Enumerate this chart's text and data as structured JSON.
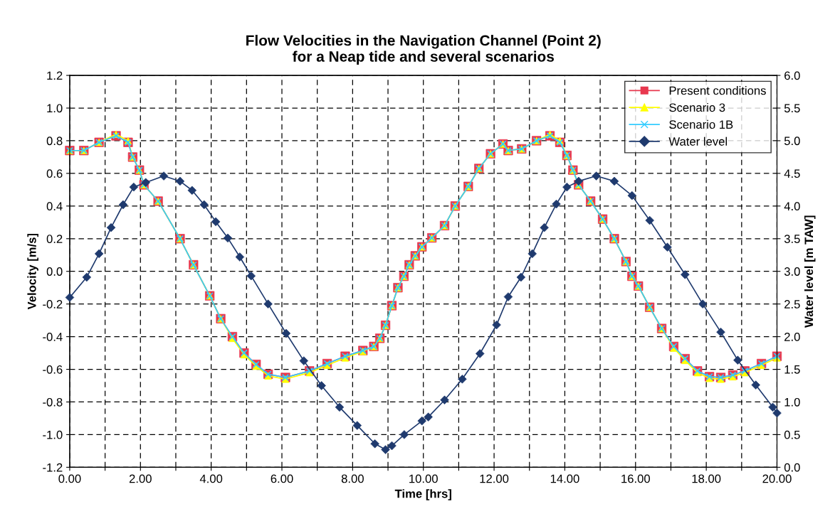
{
  "chart_data": {
    "type": "line",
    "title": "Flow Velocities in the Navigation Channel (Point 2)\nfor a Neap tide and several scenarios",
    "xlabel": "Time [hrs]",
    "ylabel": "Velocity [m/s]",
    "y2label": "Water level [m TAW]",
    "xlim": [
      0,
      20
    ],
    "ylim": [
      -1.2,
      1.2
    ],
    "y2lim": [
      0,
      6
    ],
    "xticks": [
      {
        "value": 0,
        "label": "0.00"
      },
      {
        "value": 1,
        "label": null
      },
      {
        "value": 2,
        "label": "2.00"
      },
      {
        "value": 3,
        "label": null
      },
      {
        "value": 4,
        "label": "4.00"
      },
      {
        "value": 5,
        "label": null
      },
      {
        "value": 6,
        "label": "6.00"
      },
      {
        "value": 7,
        "label": null
      },
      {
        "value": 8,
        "label": "8.00"
      },
      {
        "value": 9,
        "label": null
      },
      {
        "value": 10,
        "label": "10.00"
      },
      {
        "value": 11,
        "label": null
      },
      {
        "value": 12,
        "label": "12.00"
      },
      {
        "value": 13,
        "label": null
      },
      {
        "value": 14,
        "label": "14.00"
      },
      {
        "value": 15,
        "label": null
      },
      {
        "value": 16,
        "label": "16.00"
      },
      {
        "value": 17,
        "label": null
      },
      {
        "value": 18,
        "label": "18.00"
      },
      {
        "value": 19,
        "label": null
      },
      {
        "value": 20,
        "label": "20.00"
      }
    ],
    "yticks": [
      {
        "value": -1.2,
        "label": "-1.2"
      },
      {
        "value": -1.0,
        "label": "-1.0"
      },
      {
        "value": -0.8,
        "label": "-0.8"
      },
      {
        "value": -0.6,
        "label": "-0.6"
      },
      {
        "value": -0.4,
        "label": "-0.4"
      },
      {
        "value": -0.2,
        "label": "-0.2"
      },
      {
        "value": 0,
        "label": "0.0"
      },
      {
        "value": 0.2,
        "label": "0.2"
      },
      {
        "value": 0.4,
        "label": "0.4"
      },
      {
        "value": 0.6,
        "label": "0.6"
      },
      {
        "value": 0.8,
        "label": "0.8"
      },
      {
        "value": 1.0,
        "label": "1.0"
      },
      {
        "value": 1.2,
        "label": "1.2"
      }
    ],
    "y2ticks": [
      {
        "value": 0,
        "label": "0.0"
      },
      {
        "value": 0.5,
        "label": "0.5"
      },
      {
        "value": 1,
        "label": "1.0"
      },
      {
        "value": 1.5,
        "label": "1.5"
      },
      {
        "value": 2,
        "label": "2.0"
      },
      {
        "value": 2.5,
        "label": "2.5"
      },
      {
        "value": 3,
        "label": "3.0"
      },
      {
        "value": 3.5,
        "label": "3.5"
      },
      {
        "value": 4,
        "label": "4.0"
      },
      {
        "value": 4.5,
        "label": "4.5"
      },
      {
        "value": 5,
        "label": "5.0"
      },
      {
        "value": 5.5,
        "label": "5.5"
      },
      {
        "value": 6,
        "label": "6.0"
      }
    ],
    "grid": true,
    "legend": "top right",
    "series": [
      {
        "name": "Present conditions",
        "color": "#e8384f",
        "marker": "square",
        "x": [
          0,
          0.4,
          0.83,
          1.31,
          1.65,
          1.78,
          1.97,
          2.1,
          2.5,
          3.12,
          3.5,
          3.96,
          4.27,
          4.6,
          4.93,
          5.27,
          5.61,
          6.1,
          6.78,
          7.28,
          7.79,
          8.29,
          8.6,
          8.77,
          8.93,
          9.11,
          9.28,
          9.45,
          9.6,
          9.77,
          9.96,
          10.24,
          10.6,
          10.9,
          11.27,
          11.57,
          11.9,
          12.25,
          12.4,
          12.78,
          13.2,
          13.58,
          13.86,
          14.06,
          14.23,
          14.39,
          14.73,
          15.07,
          15.4,
          15.73,
          15.9,
          16.08,
          16.4,
          16.74,
          17.08,
          17.4,
          17.75,
          18.09,
          18.41,
          18.75,
          19.09,
          19.56,
          20
        ],
        "values": [
          0.74,
          0.74,
          0.79,
          0.83,
          0.79,
          0.7,
          0.62,
          0.53,
          0.43,
          0.2,
          0.04,
          -0.15,
          -0.29,
          -0.4,
          -0.5,
          -0.57,
          -0.63,
          -0.65,
          -0.61,
          -0.565,
          -0.52,
          -0.485,
          -0.46,
          -0.41,
          -0.33,
          -0.21,
          -0.1,
          -0.03,
          0.04,
          0.095,
          0.15,
          0.205,
          0.28,
          0.4,
          0.52,
          0.63,
          0.72,
          0.78,
          0.74,
          0.75,
          0.8,
          0.83,
          0.79,
          0.71,
          0.62,
          0.53,
          0.43,
          0.32,
          0.2,
          0.06,
          -0.03,
          -0.09,
          -0.22,
          -0.35,
          -0.46,
          -0.535,
          -0.61,
          -0.645,
          -0.65,
          -0.635,
          -0.61,
          -0.565,
          -0.52
        ]
      },
      {
        "name": "Scenario 3",
        "color": "#ffff00",
        "marker": "triangle",
        "x": [
          0,
          0.4,
          0.83,
          1.31,
          1.65,
          1.78,
          1.97,
          2.1,
          2.5,
          3.12,
          3.5,
          3.96,
          4.27,
          4.6,
          4.93,
          5.27,
          5.61,
          6.1,
          6.78,
          7.28,
          7.79,
          8.29,
          8.6,
          8.77,
          8.93,
          9.11,
          9.28,
          9.45,
          9.6,
          9.77,
          9.96,
          10.24,
          10.6,
          10.9,
          11.27,
          11.57,
          11.9,
          12.25,
          12.4,
          12.78,
          13.2,
          13.58,
          13.86,
          14.06,
          14.23,
          14.39,
          14.73,
          15.07,
          15.4,
          15.73,
          15.9,
          16.08,
          16.4,
          16.74,
          17.08,
          17.4,
          17.75,
          18.09,
          18.41,
          18.75,
          19.09,
          19.56,
          20
        ],
        "values": [
          0.74,
          0.74,
          0.79,
          0.84,
          0.8,
          0.7,
          0.62,
          0.53,
          0.43,
          0.2,
          0.04,
          -0.15,
          -0.29,
          -0.41,
          -0.51,
          -0.58,
          -0.64,
          -0.66,
          -0.62,
          -0.575,
          -0.53,
          -0.49,
          -0.46,
          -0.41,
          -0.33,
          -0.21,
          -0.1,
          -0.03,
          0.04,
          0.095,
          0.15,
          0.205,
          0.28,
          0.4,
          0.52,
          0.63,
          0.72,
          0.78,
          0.74,
          0.75,
          0.8,
          0.84,
          0.8,
          0.71,
          0.62,
          0.53,
          0.43,
          0.32,
          0.2,
          0.06,
          -0.03,
          -0.09,
          -0.22,
          -0.35,
          -0.47,
          -0.545,
          -0.62,
          -0.655,
          -0.66,
          -0.645,
          -0.62,
          -0.575,
          -0.53
        ]
      },
      {
        "name": "Scenario 1B",
        "color": "#33ccff",
        "marker": "cross",
        "x": [
          0,
          0.4,
          0.83,
          1.31,
          1.65,
          1.78,
          1.97,
          2.1,
          2.5,
          3.12,
          3.5,
          3.96,
          4.27,
          4.6,
          4.93,
          5.27,
          5.61,
          6.1,
          6.78,
          7.28,
          7.79,
          8.29,
          8.6,
          8.77,
          8.93,
          9.11,
          9.28,
          9.45,
          9.6,
          9.77,
          9.96,
          10.24,
          10.6,
          10.9,
          11.27,
          11.57,
          11.9,
          12.25,
          12.4,
          12.78,
          13.2,
          13.58,
          13.86,
          14.06,
          14.23,
          14.39,
          14.73,
          15.07,
          15.4,
          15.73,
          15.9,
          16.08,
          16.4,
          16.74,
          17.08,
          17.4,
          17.75,
          18.09,
          18.41,
          18.75,
          19.09,
          19.56,
          20
        ],
        "values": [
          0.74,
          0.74,
          0.79,
          0.83,
          0.79,
          0.7,
          0.62,
          0.53,
          0.43,
          0.2,
          0.04,
          -0.15,
          -0.29,
          -0.4,
          -0.5,
          -0.57,
          -0.63,
          -0.65,
          -0.61,
          -0.565,
          -0.52,
          -0.485,
          -0.46,
          -0.41,
          -0.33,
          -0.21,
          -0.1,
          -0.03,
          0.04,
          0.095,
          0.15,
          0.205,
          0.28,
          0.4,
          0.52,
          0.63,
          0.72,
          0.78,
          0.74,
          0.75,
          0.8,
          0.83,
          0.79,
          0.71,
          0.62,
          0.53,
          0.43,
          0.32,
          0.2,
          0.06,
          -0.03,
          -0.09,
          -0.22,
          -0.35,
          -0.46,
          -0.535,
          -0.61,
          -0.645,
          -0.65,
          -0.635,
          -0.61,
          -0.565,
          -0.52
        ]
      },
      {
        "name": "Water level",
        "color": "#1f3a6e",
        "marker": "diamond",
        "axis": "y2",
        "x": [
          0,
          0.48,
          0.83,
          1.17,
          1.51,
          1.81,
          2.15,
          2.66,
          3.12,
          3.46,
          3.8,
          4.13,
          4.47,
          4.81,
          5.13,
          5.61,
          6.12,
          6.62,
          7.12,
          7.63,
          8.13,
          8.63,
          8.93,
          9.11,
          9.46,
          9.96,
          10.14,
          10.6,
          11.1,
          11.6,
          12.07,
          12.4,
          12.76,
          13.08,
          13.42,
          13.76,
          14.06,
          14.39,
          14.89,
          15.4,
          15.9,
          16.4,
          16.9,
          17.4,
          17.9,
          18.41,
          18.89,
          19.4,
          19.88,
          20
        ],
        "values": [
          2.6,
          2.91,
          3.27,
          3.67,
          4.02,
          4.29,
          4.36,
          4.46,
          4.38,
          4.24,
          4.02,
          3.76,
          3.51,
          3.22,
          2.93,
          2.5,
          2.05,
          1.63,
          1.25,
          0.92,
          0.64,
          0.36,
          0.27,
          0.33,
          0.5,
          0.71,
          0.77,
          1.03,
          1.35,
          1.74,
          2.18,
          2.61,
          2.91,
          3.27,
          3.67,
          4.03,
          4.29,
          4.38,
          4.46,
          4.38,
          4.16,
          3.78,
          3.37,
          2.95,
          2.5,
          2.07,
          1.64,
          1.26,
          0.92,
          0.83
        ]
      }
    ]
  }
}
